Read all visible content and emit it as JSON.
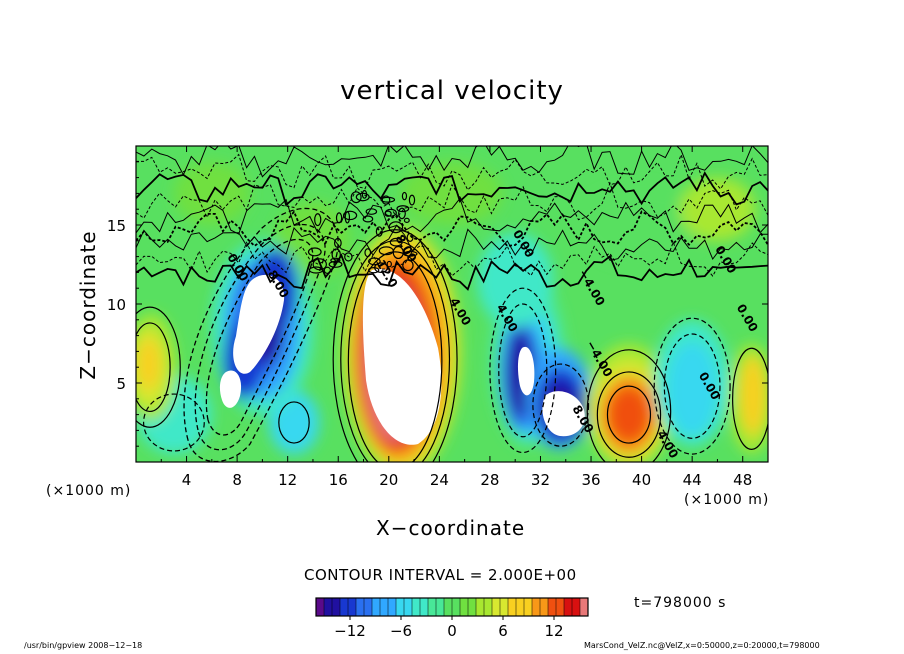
{
  "title": "vertical velocity",
  "axes": {
    "xlabel": "X−coordinate",
    "ylabel": "Z−coordinate",
    "x_unit_left": "(×1000 m)",
    "x_unit_right": "(×1000 m)"
  },
  "contour_interval": "CONTOUR INTERVAL = 2.000E+00",
  "time_label": "t=798000 s",
  "footer": {
    "left": "/usr/bin/gpview   2008−12−18",
    "right": "MarsCond_VelZ.nc@VelZ,x=0:50000,z=0:20000,t=798000"
  },
  "chart_data": {
    "type": "heatmap",
    "title": "vertical velocity",
    "xlabel": "X−coordinate",
    "ylabel": "Z−coordinate",
    "x_unit": "(×1000 m)",
    "xlim": [
      0,
      50
    ],
    "ylim": [
      0,
      20
    ],
    "x_ticks": [
      4,
      8,
      12,
      16,
      20,
      24,
      28,
      32,
      36,
      40,
      44,
      48
    ],
    "y_ticks": [
      5,
      10,
      15
    ],
    "colorbar": {
      "min": -16,
      "max": 16,
      "ticks": [
        -12,
        -6,
        0,
        6,
        12
      ],
      "tick_labels": [
        "−12",
        "−6",
        "0",
        "6",
        "12"
      ],
      "colors": [
        "#5a0a8a",
        "#2010a0",
        "#1838d0",
        "#2a70f0",
        "#30a8ff",
        "#38d8f0",
        "#40e8c8",
        "#48e898",
        "#58e060",
        "#70e040",
        "#a8e830",
        "#d8e830",
        "#f8d020",
        "#f89818",
        "#f05010",
        "#d81010",
        "#e87878"
      ]
    },
    "contour_interval": 2.0,
    "contour_labels": [
      {
        "text": "8.00",
        "x": 20.5,
        "z": 14.2
      },
      {
        "text": "12.0",
        "x": 19.0,
        "z": 12.6
      },
      {
        "text": "4.00",
        "x": 24.8,
        "z": 10.2
      },
      {
        "text": "4.00",
        "x": 28.5,
        "z": 9.8
      },
      {
        "text": "0.00",
        "x": 29.8,
        "z": 14.5
      },
      {
        "text": "−4.00",
        "x": 35.0,
        "z": 12.0
      },
      {
        "text": "−4.00",
        "x": 35.6,
        "z": 7.5
      },
      {
        "text": "8.00",
        "x": 34.5,
        "z": 3.4
      },
      {
        "text": "4.00",
        "x": 41.2,
        "z": 1.8
      },
      {
        "text": "0.00",
        "x": 44.5,
        "z": 5.5
      },
      {
        "text": "0.00",
        "x": 47.5,
        "z": 9.8
      },
      {
        "text": "0.00",
        "x": 45.8,
        "z": 13.5
      },
      {
        "text": "−8.00",
        "x": 10.0,
        "z": 12.5
      },
      {
        "text": "0.00",
        "x": 7.2,
        "z": 13.0
      }
    ],
    "features": [
      {
        "kind": "updraft",
        "x": 20.5,
        "z": 6.3,
        "peak": 16
      },
      {
        "kind": "updraft",
        "x": 39.0,
        "z": 3.0,
        "peak": 10
      },
      {
        "kind": "updraft",
        "x": 1.0,
        "z": 6.0,
        "peak": 7
      },
      {
        "kind": "updraft",
        "x": 48.5,
        "z": 4.0,
        "peak": 8
      },
      {
        "kind": "downdraft",
        "x": 9.5,
        "z": 8.5,
        "peak": -16
      },
      {
        "kind": "downdraft",
        "x": 30.5,
        "z": 5.5,
        "peak": -16
      },
      {
        "kind": "downdraft",
        "x": 33.5,
        "z": 3.5,
        "peak": -16
      }
    ]
  }
}
